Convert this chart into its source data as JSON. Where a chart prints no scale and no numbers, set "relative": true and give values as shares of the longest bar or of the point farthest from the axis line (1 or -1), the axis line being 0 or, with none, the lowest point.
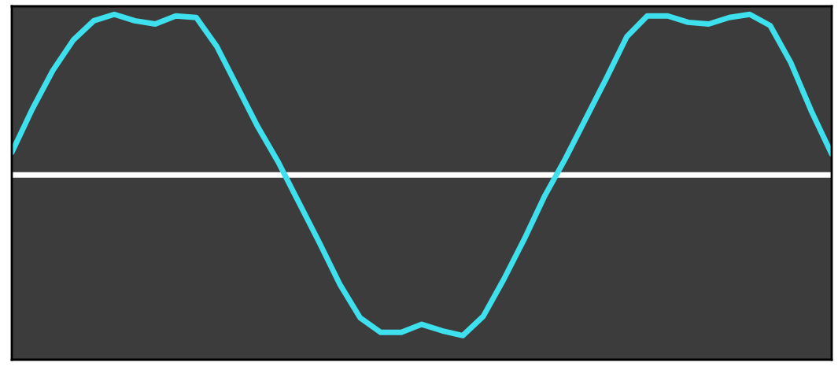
{
  "chart_data": {
    "type": "line",
    "relative": true,
    "categories": [
      null,
      null,
      null,
      null,
      null,
      null,
      null,
      null,
      null,
      null,
      null,
      null,
      null,
      null,
      null,
      null,
      null,
      null,
      null,
      null,
      null,
      null,
      null,
      null,
      null,
      null,
      null,
      null,
      null,
      null,
      null,
      null,
      null,
      null,
      null,
      null,
      null,
      null,
      null,
      null,
      null
    ],
    "series": [
      {
        "color": "#3ee0ee",
        "values": [
          0.14,
          0.41,
          0.65,
          0.84,
          0.96,
          1.0,
          0.96,
          0.94,
          0.99,
          0.98,
          0.8,
          0.55,
          0.3,
          0.08,
          -0.17,
          -0.42,
          -0.68,
          -0.89,
          -0.98,
          -0.98,
          -0.93,
          -0.97,
          -1.0,
          -0.88,
          -0.65,
          -0.4,
          -0.13,
          0.1,
          0.35,
          0.6,
          0.86,
          0.99,
          0.99,
          0.95,
          0.94,
          0.98,
          1.0,
          0.93,
          0.7,
          0.4,
          0.13
        ]
      }
    ],
    "grid": false,
    "legend": false,
    "marker": "none",
    "line_style": "solid"
  }
}
